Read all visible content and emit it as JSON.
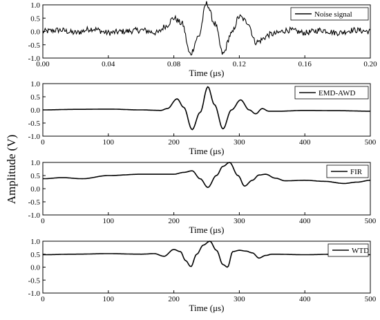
{
  "ylabel_shared": "Amplitude (V)",
  "chart_data": [
    {
      "type": "line",
      "legend": "Noise signal",
      "legend_position": "top-right",
      "xlabel": "Time (μs)",
      "xlim": [
        0,
        0.2
      ],
      "ylim": [
        -1.0,
        1.0
      ],
      "x_ticks": [
        "0.00",
        "0.04",
        "0.08",
        "0.12",
        "0.16",
        "0.20"
      ],
      "y_ticks": [
        "1.0",
        "0.5",
        "0.0",
        "-0.5",
        "-1.0"
      ],
      "series": [
        {
          "x": [
            0,
            0.01,
            0.02,
            0.03,
            0.04,
            0.05,
            0.06,
            0.07,
            0.075,
            0.08,
            0.085,
            0.09,
            0.095,
            0.1,
            0.105,
            0.11,
            0.115,
            0.12,
            0.125,
            0.13,
            0.14,
            0.15,
            0.16,
            0.17,
            0.18,
            0.19,
            0.2
          ],
          "y": [
            0.0,
            0.05,
            -0.05,
            0.1,
            -0.05,
            0.0,
            0.05,
            -0.05,
            0.2,
            0.5,
            0.3,
            -0.85,
            -0.2,
            1.05,
            0.3,
            -0.85,
            -0.1,
            0.55,
            0.35,
            -0.4,
            -0.1,
            0.05,
            -0.05,
            0.05,
            -0.05,
            0.05,
            0.0
          ]
        }
      ]
    },
    {
      "type": "line",
      "legend": "EMD-AWD",
      "legend_position": "top-right",
      "xlabel": "Time (μs)",
      "xlim": [
        0,
        500
      ],
      "ylim": [
        -1.0,
        1.0
      ],
      "x_ticks": [
        "0",
        "100",
        "200",
        "300",
        "400",
        "500"
      ],
      "y_ticks": [
        "1.0",
        "0.5",
        "0.0",
        "-0.5",
        "-1.0"
      ],
      "series": [
        {
          "x": [
            0,
            50,
            100,
            150,
            180,
            190,
            205,
            215,
            228,
            240,
            252,
            262,
            275,
            288,
            302,
            315,
            325,
            335,
            345,
            360,
            400,
            450,
            500
          ],
          "y": [
            0.0,
            0.02,
            0.03,
            0.0,
            -0.02,
            0.05,
            0.42,
            0.1,
            -0.75,
            -0.1,
            0.88,
            0.2,
            -0.72,
            0.0,
            0.38,
            0.0,
            -0.15,
            0.05,
            -0.05,
            -0.05,
            -0.02,
            -0.03,
            -0.05
          ]
        }
      ]
    },
    {
      "type": "line",
      "legend": "FIR",
      "legend_position": "top-right",
      "xlabel": "Time (μs)",
      "xlim": [
        0,
        500
      ],
      "ylim": [
        -1.0,
        1.0
      ],
      "x_ticks": [
        "0",
        "100",
        "200",
        "300",
        "400",
        "500"
      ],
      "y_ticks": [
        "1.0",
        "0.5",
        "0.0",
        "-0.5",
        "-1.0"
      ],
      "series": [
        {
          "x": [
            0,
            30,
            60,
            100,
            150,
            200,
            215,
            228,
            240,
            252,
            265,
            275,
            285,
            298,
            308,
            320,
            330,
            340,
            355,
            370,
            400,
            430,
            460,
            480,
            500
          ],
          "y": [
            0.38,
            0.42,
            0.38,
            0.5,
            0.55,
            0.55,
            0.62,
            0.68,
            0.38,
            0.05,
            0.5,
            0.85,
            1.0,
            0.5,
            0.1,
            0.32,
            0.52,
            0.55,
            0.4,
            0.3,
            0.32,
            0.28,
            0.2,
            0.25,
            0.32
          ]
        }
      ]
    },
    {
      "type": "line",
      "legend": "WTD",
      "legend_position": "top-right",
      "xlabel": "Time (μs)",
      "xlim": [
        0,
        500
      ],
      "ylim": [
        -1.0,
        1.0
      ],
      "x_ticks": [
        "0",
        "100",
        "200",
        "300",
        "400",
        "500"
      ],
      "y_ticks": [
        "1.0",
        "0.5",
        "0.0",
        "-0.5",
        "-1.0"
      ],
      "series": [
        {
          "x": [
            0,
            50,
            100,
            150,
            170,
            185,
            200,
            210,
            218,
            226,
            235,
            245,
            255,
            265,
            275,
            282,
            290,
            300,
            310,
            320,
            330,
            340,
            350,
            400,
            450,
            500
          ],
          "y": [
            0.48,
            0.5,
            0.52,
            0.5,
            0.52,
            0.42,
            0.68,
            0.6,
            0.25,
            0.02,
            0.5,
            0.85,
            1.0,
            0.65,
            0.1,
            0.0,
            0.6,
            0.65,
            0.62,
            0.55,
            0.35,
            0.45,
            0.5,
            0.48,
            0.5,
            0.48
          ]
        }
      ]
    }
  ]
}
